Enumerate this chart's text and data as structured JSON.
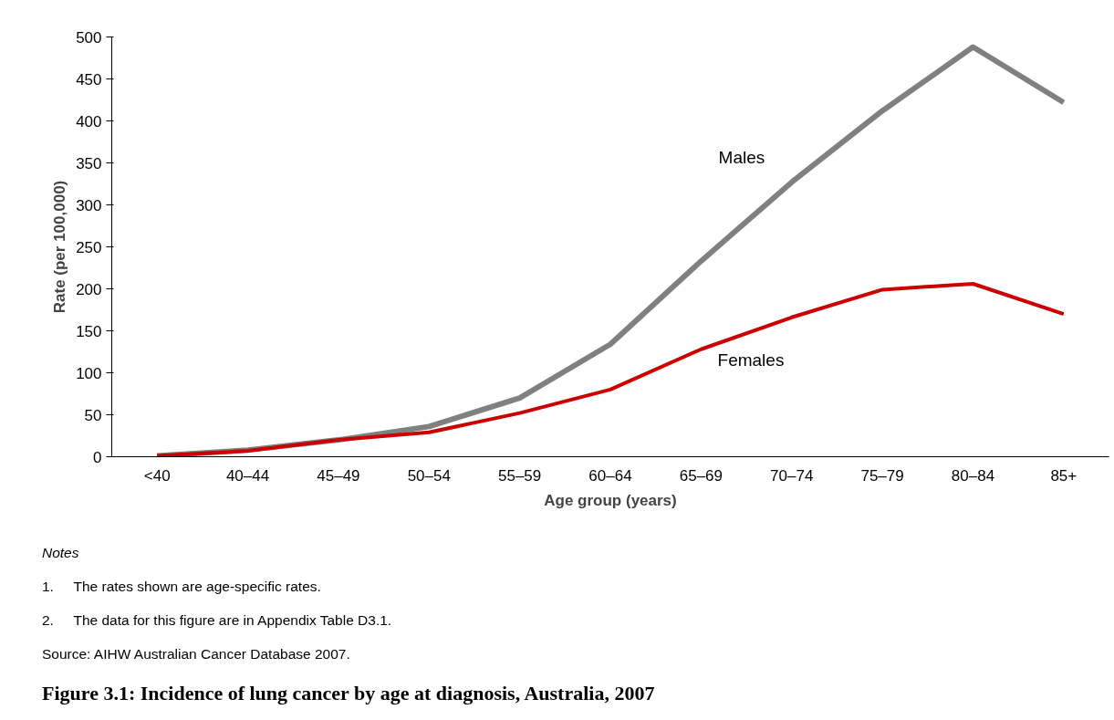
{
  "chart_data": {
    "type": "line",
    "title": "Figure 3.1: Incidence of lung cancer by age at diagnosis, Australia, 2007",
    "xlabel": "Age group (years)",
    "ylabel": "Rate (per 100,000)",
    "categories": [
      "<40",
      "40–44",
      "45–49",
      "50–54",
      "55–59",
      "60–64",
      "65–69",
      "70–74",
      "75–79",
      "80–84",
      "85+"
    ],
    "series": [
      {
        "name": "Males",
        "color": "#808080",
        "values": [
          1,
          8,
          20,
          36,
          70,
          134,
          233,
          327,
          412,
          488,
          422
        ]
      },
      {
        "name": "Females",
        "color": "#cc0000",
        "values": [
          1,
          7,
          20,
          29,
          52,
          80,
          128,
          166,
          199,
          206,
          170
        ]
      }
    ],
    "ylim": [
      0,
      500
    ],
    "yticks": [
      0,
      50,
      100,
      150,
      200,
      250,
      300,
      350,
      400,
      450,
      500
    ],
    "grid": false,
    "legend": false,
    "marker": "none",
    "line_style": "solid",
    "annotations": [
      "Notes",
      "1.     The rates shown are age-specific rates.",
      "2.     The data for this figure are in Appendix Table D3.1.",
      "Source: AIHW Australian Cancer Database 2007."
    ]
  }
}
